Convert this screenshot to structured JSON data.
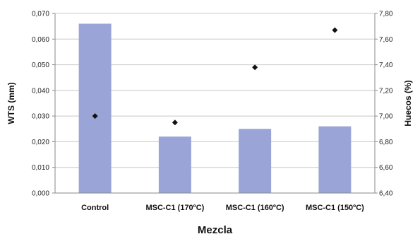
{
  "chart_data": {
    "type": "bar",
    "categories": [
      "Control",
      "MSC-C1 (170ºC)",
      "MSC-C1 (160ºC)",
      "MSC-C1 (150ºC)"
    ],
    "series": [
      {
        "name": "",
        "kind": "bar",
        "axis": "left",
        "values": [
          0.066,
          0.022,
          0.025,
          0.026
        ]
      },
      {
        "name": "",
        "kind": "scatter",
        "axis": "right",
        "values": [
          7.0,
          6.95,
          7.38,
          7.67
        ]
      }
    ],
    "xlabel": "Mezcla",
    "ylabel": "WTS (mm)",
    "y2label": "Huecos (%)",
    "ylim": [
      0,
      0.07
    ],
    "y2lim": [
      6.4,
      7.8
    ],
    "yticks": [
      "0,000",
      "0,010",
      "0,020",
      "0,030",
      "0,040",
      "0,050",
      "0,060",
      "0,070"
    ],
    "y2ticks": [
      "6,40",
      "6,60",
      "6,80",
      "7,00",
      "7,20",
      "7,40",
      "7,60",
      "7,80"
    ],
    "grid": true,
    "legend": "none",
    "colors": {
      "bar": "#9aa4d6",
      "marker": "#111111",
      "grid": "#c8c8c8",
      "axis": "#888888"
    }
  }
}
